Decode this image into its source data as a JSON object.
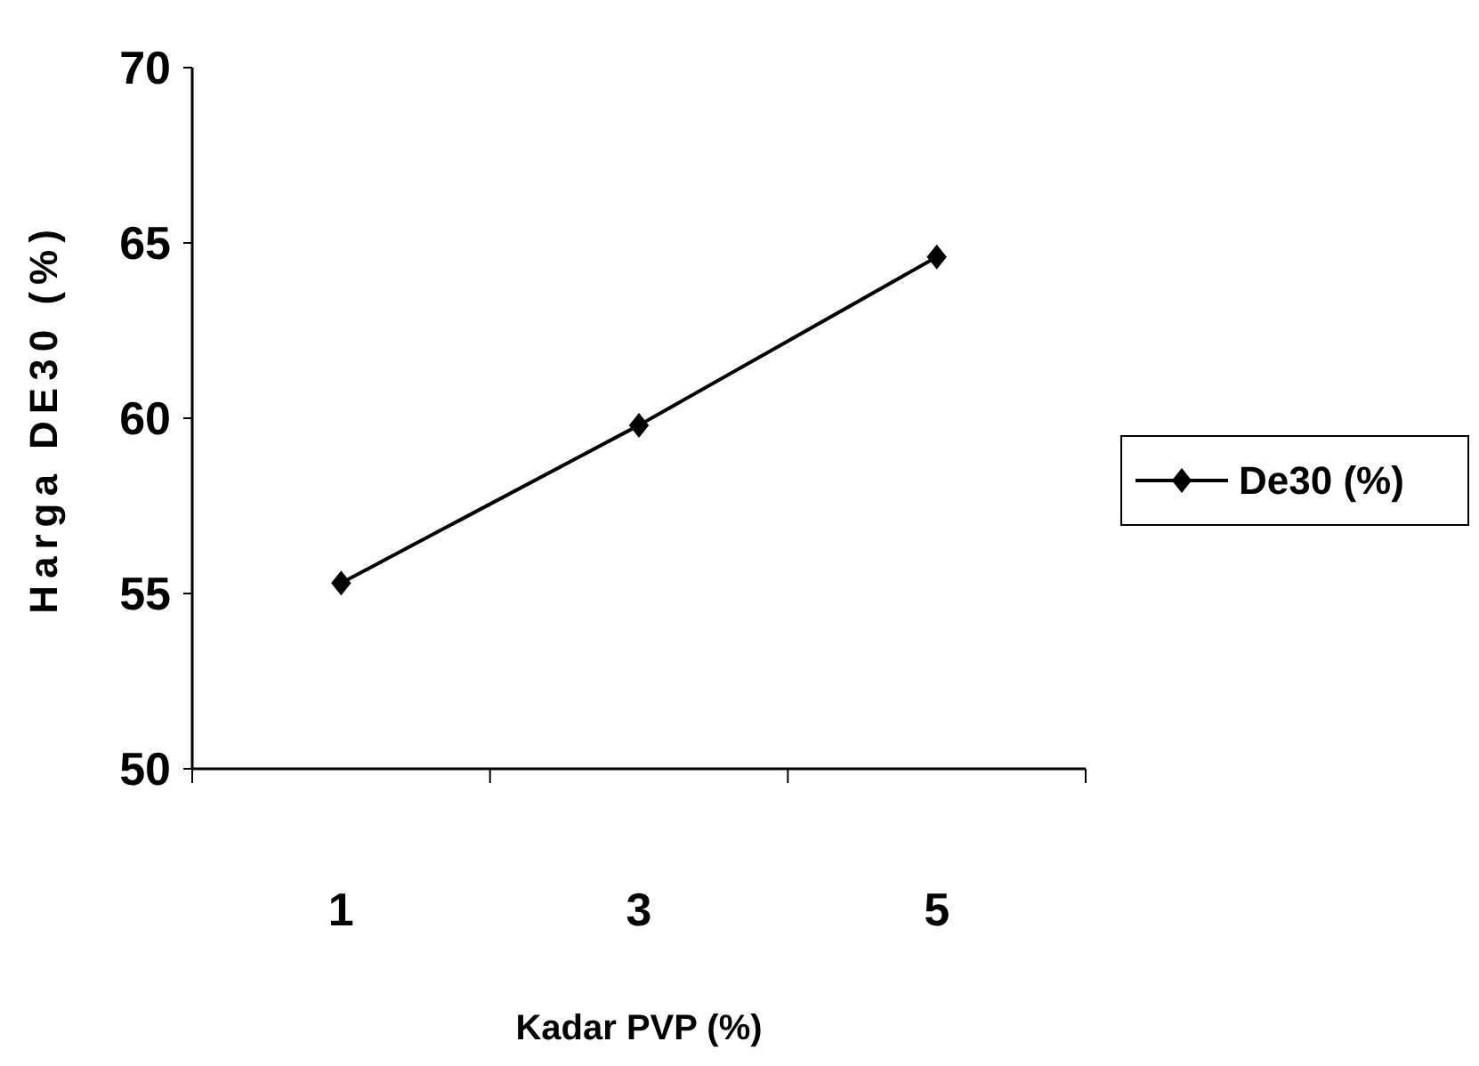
{
  "chart_data": {
    "type": "line",
    "xlabel": "Kadar PVP (%)",
    "ylabel": "Harga DE30 (%)",
    "categories": [
      "1",
      "3",
      "5"
    ],
    "series": [
      {
        "name": "De30 (%)",
        "color": "#000000",
        "values": [
          55.3,
          59.8,
          64.6
        ]
      }
    ],
    "ylim": [
      50,
      70
    ],
    "yticks": [
      50,
      55,
      60,
      65,
      70
    ],
    "grid": false,
    "legend": "right",
    "marker": "diamond",
    "line_style": "solid"
  }
}
